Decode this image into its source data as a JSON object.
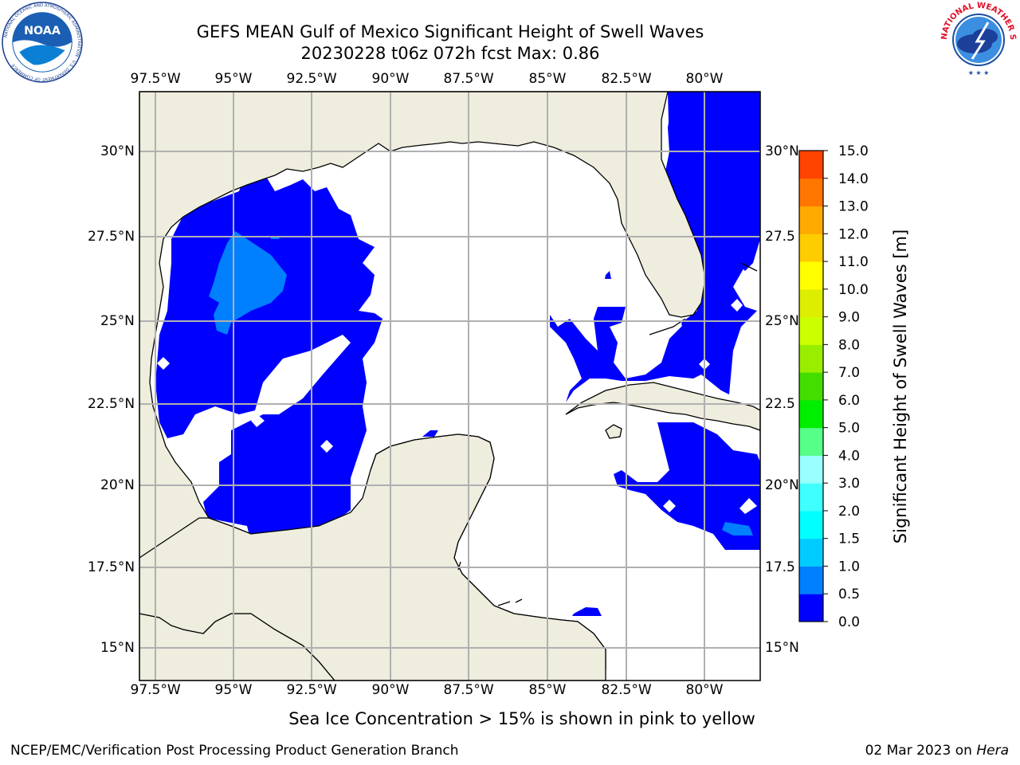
{
  "header": {
    "title_line1": "GEFS MEAN Gulf of Mexico Significant Height of Swell Waves",
    "title_line2": "20230228 t06z 072h fcst   Max: 0.86"
  },
  "logos": {
    "left_name": "NOAA",
    "left_ring_text": "NATIONAL OCEANIC AND ATMOSPHERIC ADMINISTRATION · U.S. DEPARTMENT OF COMMERCE",
    "right_ring_text": "NATIONAL WEATHER SERVICE"
  },
  "map": {
    "lon_ticks": [
      "97.5°W",
      "95°W",
      "92.5°W",
      "90°W",
      "87.5°W",
      "85°W",
      "82.5°W",
      "80°W"
    ],
    "lat_ticks": [
      "30°N",
      "27.5°N",
      "25°N",
      "22.5°N",
      "20°N",
      "17.5°N",
      "15°N"
    ],
    "lat_ticks_right": [
      "30°N",
      "27.5",
      "25°N",
      "22.5",
      "20°N",
      "17.5",
      "15°N"
    ],
    "land_color": "#eeedde",
    "ocean_color": "#ffffff",
    "grid": true
  },
  "colorbar": {
    "label": "Significant Height of Swell Waves [m]",
    "levels": [
      "0.0",
      "0.5",
      "1.0",
      "1.5",
      "2.0",
      "3.0",
      "4.0",
      "5.0",
      "6.0",
      "7.0",
      "8.0",
      "9.0",
      "10.0",
      "11.0",
      "12.0",
      "13.0",
      "14.0",
      "15.0"
    ],
    "colors": [
      "#0000ff",
      "#0080ff",
      "#00ccff",
      "#00ffff",
      "#40ffff",
      "#99ffff",
      "#55ff88",
      "#00ee00",
      "#44dd00",
      "#99ee00",
      "#ccff00",
      "#ddee00",
      "#ffff00",
      "#ffcc00",
      "#ffaa00",
      "#ff7700",
      "#ff4400",
      "#ff0000"
    ]
  },
  "subtitle": "Sea Ice Concentration > 15% is shown in pink to yellow",
  "footer": {
    "left": "NCEP/EMC/Verification Post Processing Product Generation Branch",
    "right_prefix": "02 Mar 2023 on ",
    "right_italic": "Hera"
  }
}
